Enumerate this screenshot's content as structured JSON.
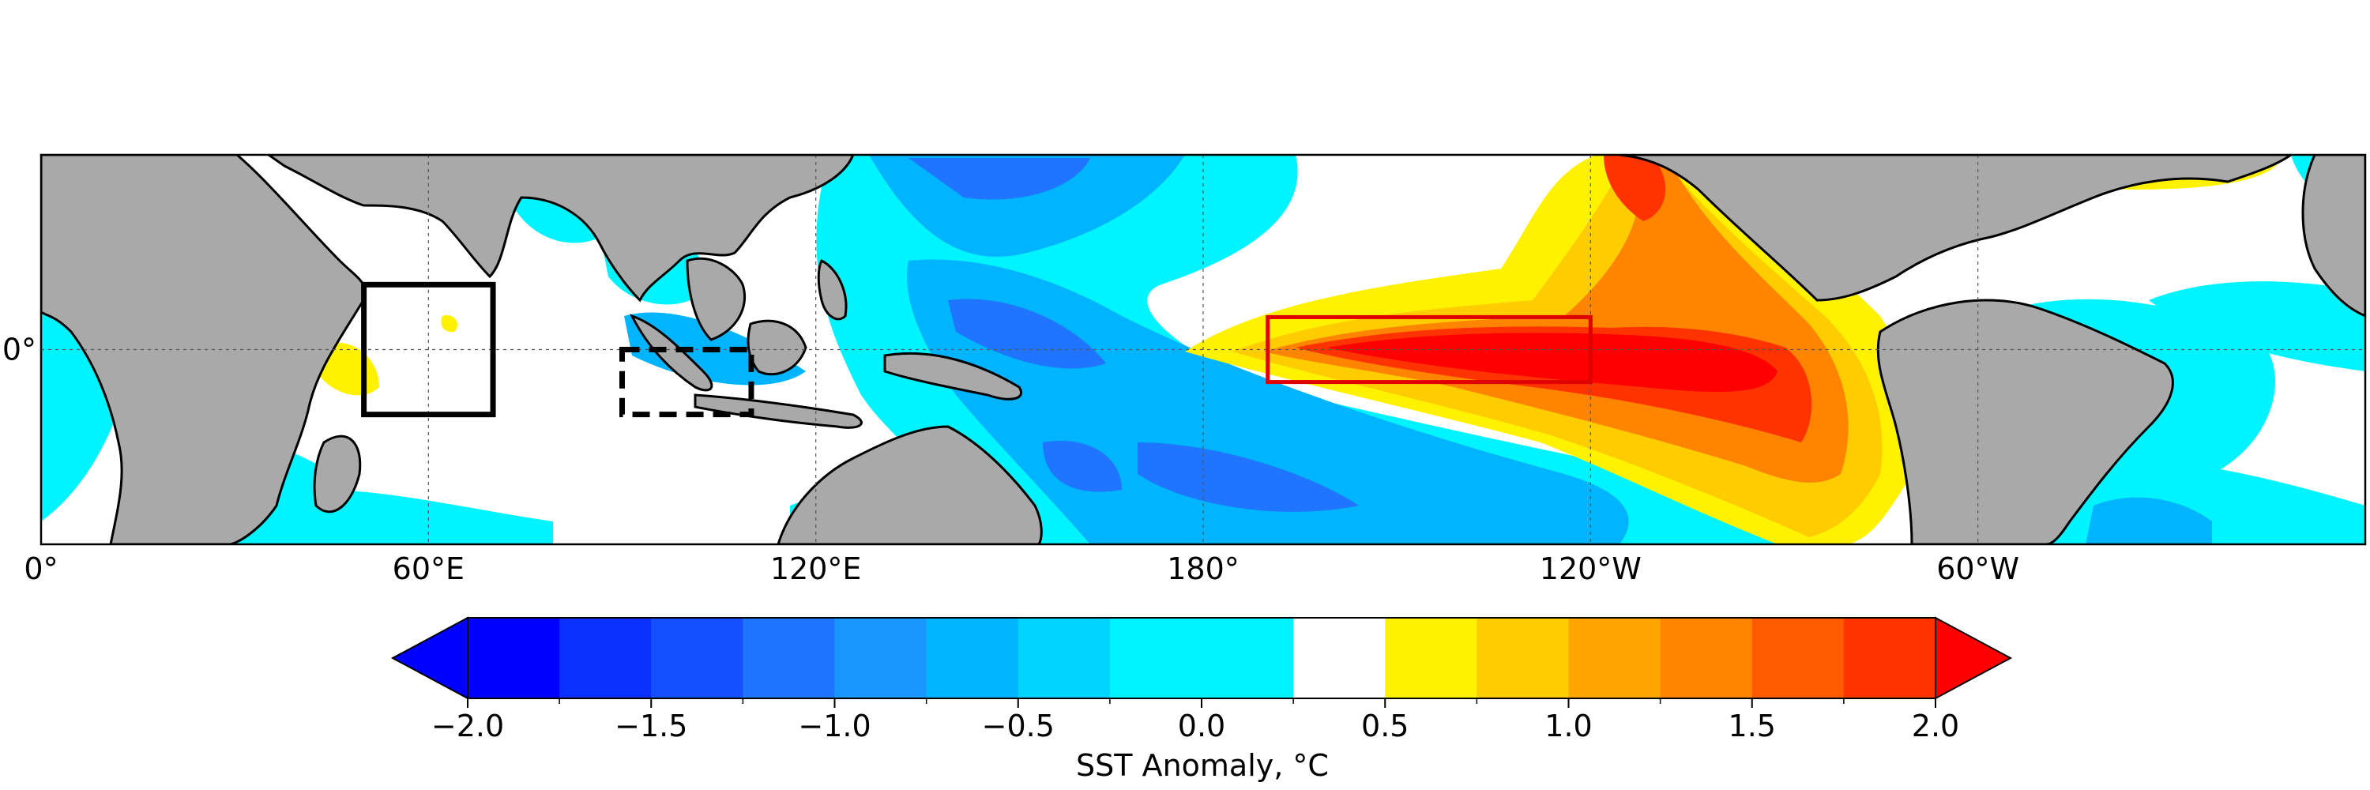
{
  "map": {
    "lon_range": [
      0,
      360
    ],
    "lat_range": [
      -30,
      30
    ],
    "land_color": "#a9a9a9",
    "ocean_neutral_color": "#ffffff",
    "gridlines": true,
    "lon_ticks": [
      {
        "value": 0,
        "label": "0°"
      },
      {
        "value": 60,
        "label": "60°E"
      },
      {
        "value": 120,
        "label": "120°E"
      },
      {
        "value": 180,
        "label": "180°"
      },
      {
        "value": 240,
        "label": "120°W"
      },
      {
        "value": 300,
        "label": "60°W"
      }
    ],
    "lat_ticks": [
      {
        "value": 0,
        "label": "0°"
      }
    ],
    "regions": [
      {
        "name": "western-indian-ocean-box",
        "lon": [
          50,
          70
        ],
        "lat": [
          -10,
          10
        ],
        "style": "solid",
        "color": "#000000"
      },
      {
        "name": "eastern-indian-ocean-box",
        "lon": [
          90,
          110
        ],
        "lat": [
          -10,
          0
        ],
        "style": "dashed",
        "color": "#000000"
      },
      {
        "name": "nino34-box",
        "lon": [
          190,
          240
        ],
        "lat": [
          -5,
          5
        ],
        "style": "solid",
        "color": "#e00000"
      }
    ],
    "anomaly_features": [
      {
        "name": "central-east-pacific-warm-tongue",
        "lon": [
          175,
          292
        ],
        "lat": [
          -15,
          15
        ],
        "value": 2.0
      },
      {
        "name": "north-east-pacific-warm",
        "lon": [
          225,
          252
        ],
        "lat": [
          10,
          30
        ],
        "value": 1.5
      },
      {
        "name": "west-pacific-cool",
        "lon": [
          125,
          185
        ],
        "lat": [
          -30,
          30
        ],
        "value": -1.5
      },
      {
        "name": "south-pacific-cool-band",
        "lon": [
          150,
          230
        ],
        "lat": [
          -30,
          -8
        ],
        "value": -1.0
      },
      {
        "name": "maritime-continent-cool",
        "lon": [
          92,
          140
        ],
        "lat": [
          -12,
          8
        ],
        "value": -1.0
      },
      {
        "name": "tropical-atlantic-cool",
        "lon": [
          305,
          360
        ],
        "lat": [
          -15,
          15
        ],
        "value": -0.5
      },
      {
        "name": "south-indian-cool",
        "lon": [
          0,
          120
        ],
        "lat": [
          -30,
          -10
        ],
        "value": -0.5
      },
      {
        "name": "north-atlantic-warm",
        "lon": [
          300,
          355
        ],
        "lat": [
          22,
          30
        ],
        "value": 0.5
      },
      {
        "name": "western-indian-warm-patch",
        "lon": [
          42,
          56
        ],
        "lat": [
          -8,
          6
        ],
        "value": 0.5
      }
    ]
  },
  "colorbar": {
    "label": "SST Anomaly, °C",
    "min": -2.0,
    "max": 2.0,
    "extend": "both",
    "bounds": [
      -2.0,
      -1.75,
      -1.5,
      -1.25,
      -1.0,
      -0.75,
      -0.5,
      -0.25,
      0.25,
      0.5,
      0.75,
      1.0,
      1.25,
      1.5,
      1.75,
      2.0
    ],
    "colors": [
      "#0000ff",
      "#0a2fff",
      "#1450ff",
      "#1f75ff",
      "#1a96ff",
      "#00b4ff",
      "#00d4ff",
      "#00f4ff",
      "#ffffff",
      "#fff200",
      "#ffcc00",
      "#ffa500",
      "#ff8400",
      "#ff5a00",
      "#ff3300",
      "#ff0000"
    ],
    "under_color": "#0000ff",
    "over_color": "#ff0000",
    "ticks": [
      {
        "value": -2.0,
        "label": "−2.0"
      },
      {
        "value": -1.5,
        "label": "−1.5"
      },
      {
        "value": -1.0,
        "label": "−1.0"
      },
      {
        "value": -0.5,
        "label": "−0.5"
      },
      {
        "value": 0.0,
        "label": "0.0"
      },
      {
        "value": 0.5,
        "label": "0.5"
      },
      {
        "value": 1.0,
        "label": "1.0"
      },
      {
        "value": 1.5,
        "label": "1.5"
      },
      {
        "value": 2.0,
        "label": "2.0"
      }
    ]
  }
}
